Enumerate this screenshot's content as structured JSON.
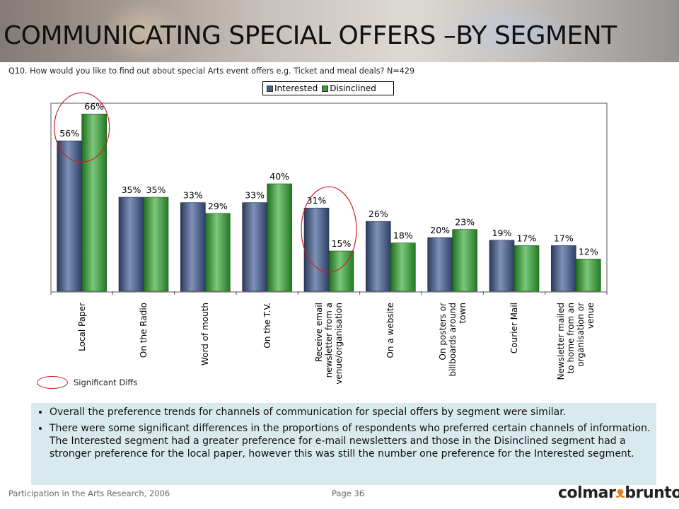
{
  "slide": {
    "title": "COMMUNICATING SPECIAL OFFERS –BY SEGMENT",
    "question": "Q10. How would you like to find out about special Arts event offers e.g. Ticket and meal deals? N=429",
    "sig_legend_label": "Significant Diffs",
    "notes": [
      "Overall the preference trends for channels of communication for special offers by segment were similar.",
      "There were some significant differences in the proportions of respondents who preferred certain channels of information.  The Interested segment had a greater preference for e-mail newsletters and those in the Disinclined segment had a stronger preference for the local paper, however this was still the number one preference for the Interested segment."
    ],
    "footer_left": "Participation in the Arts Research, 2006",
    "footer_page": "Page 36",
    "logo_text_1": "colmar",
    "logo_text_2": "brunton"
  },
  "chart_data": {
    "type": "bar",
    "categories": [
      "Local Paper",
      "On the Radio",
      "Word of mouth",
      "On the T.V.",
      "Receive email newsletter from a venue/organisation",
      "On a website",
      "On posters or billboards around town",
      "Courier Mail",
      "Newsletter mailed to home from an organisation or venue"
    ],
    "category_lines": [
      [
        "Local Paper"
      ],
      [
        "On the Radio"
      ],
      [
        "Word of mouth"
      ],
      [
        "On the T.V."
      ],
      [
        "Receive email",
        "newsletter from a",
        "venue/organisation"
      ],
      [
        "On a website"
      ],
      [
        "On posters or",
        "billboards around",
        "town"
      ],
      [
        "Courier Mail"
      ],
      [
        "Newsletter mailed",
        "to home from an",
        "organisation or",
        "venue"
      ]
    ],
    "series": [
      {
        "name": "Interested",
        "values": [
          56,
          35,
          33,
          33,
          31,
          26,
          20,
          19,
          17
        ],
        "color": "#4a5f8a"
      },
      {
        "name": "Disinclined",
        "values": [
          66,
          35,
          29,
          40,
          15,
          18,
          23,
          17,
          12
        ],
        "color": "#3f9a3f"
      }
    ],
    "value_suffix": "%",
    "ylim": [
      0,
      70
    ],
    "legend_position": "top",
    "significant_differences": [
      "Local Paper",
      "Receive email newsletter from a venue/organisation"
    ],
    "grid": false
  }
}
